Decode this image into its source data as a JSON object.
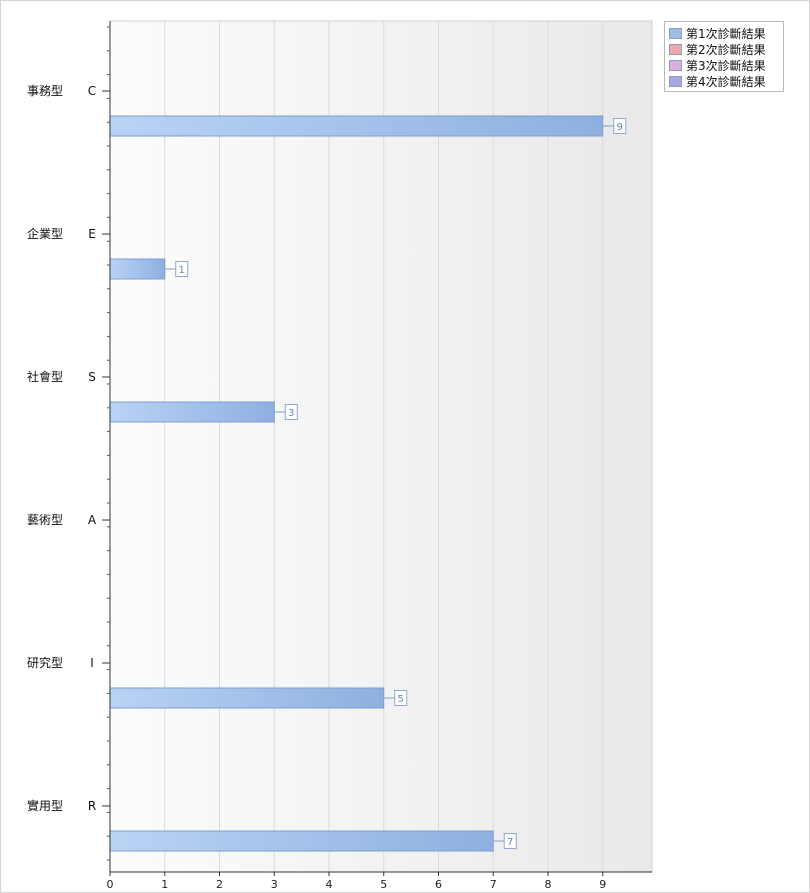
{
  "chart_data": {
    "type": "bar",
    "orientation": "horizontal",
    "categories": [
      {
        "name": "事務型",
        "code": "C"
      },
      {
        "name": "企業型",
        "code": "E"
      },
      {
        "name": "社會型",
        "code": "S"
      },
      {
        "name": "藝術型",
        "code": "A"
      },
      {
        "name": "研究型",
        "code": "I"
      },
      {
        "name": "實用型",
        "code": "R"
      }
    ],
    "series": [
      {
        "name": "第1次診斷結果",
        "color": "#9dbde9",
        "values": [
          9,
          1,
          3,
          null,
          5,
          7
        ]
      },
      {
        "name": "第2次診斷結果",
        "color": "#eea7ad",
        "values": [
          null,
          null,
          null,
          null,
          null,
          null
        ]
      },
      {
        "name": "第3次診斷結果",
        "color": "#dcabe0",
        "values": [
          null,
          null,
          null,
          null,
          null,
          null
        ]
      },
      {
        "name": "第4次診斷結果",
        "color": "#aaa5e3",
        "values": [
          null,
          null,
          null,
          null,
          null,
          null
        ]
      }
    ],
    "xticks": [
      0,
      1,
      2,
      3,
      4,
      5,
      6,
      7,
      8,
      9
    ],
    "xlim": [
      0,
      9.9
    ],
    "grid": true,
    "legend_position": "top-right"
  }
}
